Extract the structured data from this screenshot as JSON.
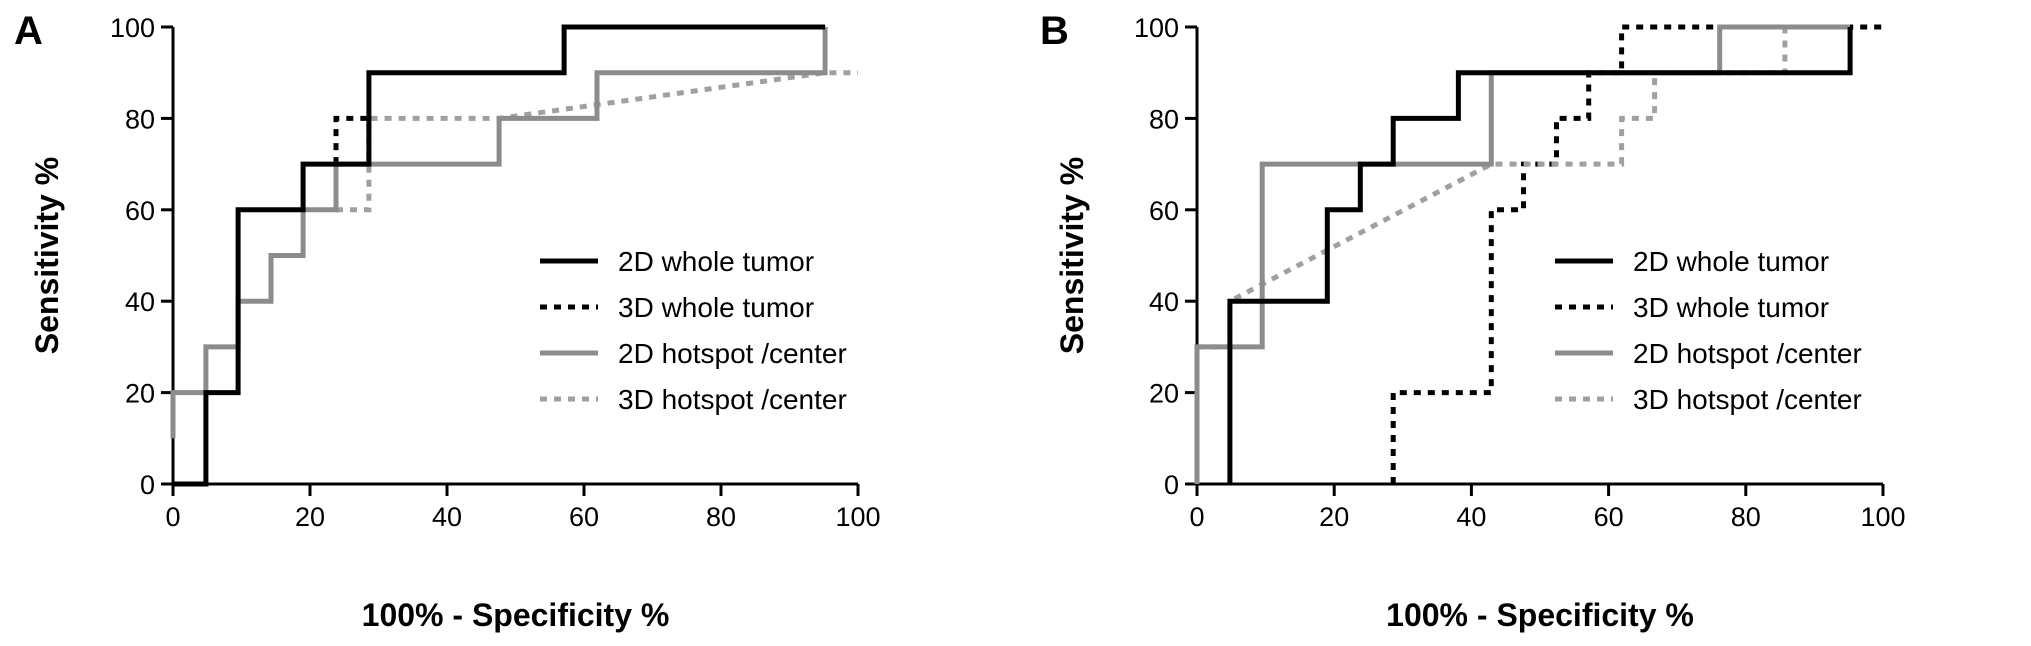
{
  "series_styles": [
    {
      "color": "#000000",
      "dash": "solid"
    },
    {
      "color": "#000000",
      "dash": "dotted"
    },
    {
      "color": "#8c8c8c",
      "dash": "solid"
    },
    {
      "color": "#a0a0a0",
      "dash": "dotted"
    }
  ],
  "chart_data": [
    {
      "panel": "A",
      "type": "line",
      "step": true,
      "xlabel": "100% - Specificity %",
      "ylabel": "Sensitivity %",
      "xlim": [
        0,
        100
      ],
      "ylim": [
        0,
        100
      ],
      "xticks": [
        0,
        20,
        40,
        60,
        80,
        100
      ],
      "yticks": [
        0,
        20,
        40,
        60,
        80,
        100
      ],
      "legend_position": "right",
      "series": [
        {
          "name": "2D whole tumor",
          "x": [
            0,
            4.8,
            4.8,
            9.5,
            9.5,
            19,
            19,
            23.8,
            23.8,
            28.6,
            28.6,
            57.1,
            57.1,
            95.2
          ],
          "y": [
            0,
            0,
            20,
            20,
            60,
            60,
            70,
            70,
            70,
            70,
            90,
            90,
            100,
            100
          ]
        },
        {
          "name": "3D whole tumor",
          "x": [
            23.8,
            23.8,
            28.6,
            28.6
          ],
          "y": [
            70,
            80,
            80,
            70
          ]
        },
        {
          "name": "2D hotspot /center",
          "x": [
            0,
            0,
            4.8,
            4.8,
            9.5,
            9.5,
            14.3,
            14.3,
            19,
            19,
            23.8,
            23.8,
            47.6,
            47.6,
            61.9,
            61.9,
            95.2,
            95.2
          ],
          "y": [
            10,
            20,
            20,
            30,
            30,
            40,
            40,
            50,
            50,
            60,
            60,
            70,
            70,
            80,
            80,
            90,
            90,
            100
          ]
        },
        {
          "name": "3D hotspot /center",
          "x": [
            23.8,
            28.6,
            28.6,
            28.6,
            47.6,
            95.2,
            100
          ],
          "y": [
            60,
            60,
            70,
            80,
            80,
            90,
            90
          ]
        }
      ]
    },
    {
      "panel": "B",
      "type": "line",
      "step": true,
      "xlabel": "100% - Specificity %",
      "ylabel": "Sensitivity %",
      "xlim": [
        0,
        100
      ],
      "ylim": [
        0,
        100
      ],
      "xticks": [
        0,
        20,
        40,
        60,
        80,
        100
      ],
      "yticks": [
        0,
        20,
        40,
        60,
        80,
        100
      ],
      "legend_position": "right",
      "series": [
        {
          "name": "2D whole tumor",
          "x": [
            4.8,
            4.8,
            19,
            19,
            23.8,
            23.8,
            28.6,
            28.6,
            38.1,
            38.1,
            95.2,
            95.2
          ],
          "y": [
            0,
            40,
            40,
            60,
            60,
            70,
            70,
            80,
            80,
            90,
            90,
            100
          ]
        },
        {
          "name": "3D whole tumor",
          "x": [
            28.6,
            28.6,
            42.9,
            42.9,
            47.6,
            47.6,
            52.4,
            52.4,
            57.1,
            57.1,
            61.9,
            61.9,
            100
          ],
          "y": [
            0,
            20,
            20,
            60,
            60,
            70,
            70,
            80,
            80,
            90,
            90,
            100,
            100
          ]
        },
        {
          "name": "2D hotspot /center",
          "x": [
            0,
            0,
            9.5,
            9.5,
            42.9,
            42.9,
            76.2,
            76.2,
            95.2
          ],
          "y": [
            0,
            30,
            30,
            70,
            70,
            90,
            90,
            100,
            100
          ]
        },
        {
          "name": "3D hotspot /center",
          "x": [
            0,
            4.8,
            4.8,
            42.9,
            61.9,
            61.9,
            66.7,
            66.7,
            85.7,
            85.7
          ],
          "y": [
            30,
            30,
            40,
            70,
            70,
            80,
            80,
            90,
            90,
            100
          ]
        }
      ]
    }
  ]
}
